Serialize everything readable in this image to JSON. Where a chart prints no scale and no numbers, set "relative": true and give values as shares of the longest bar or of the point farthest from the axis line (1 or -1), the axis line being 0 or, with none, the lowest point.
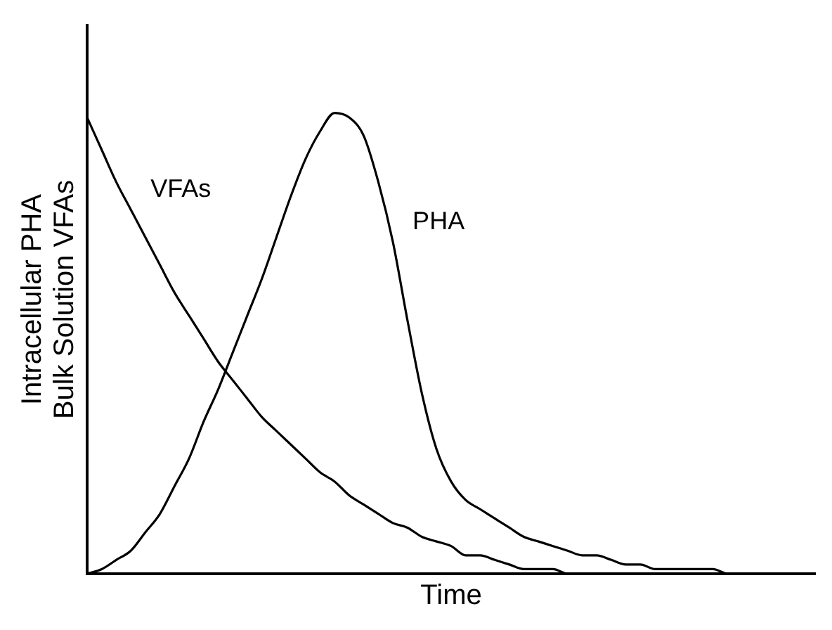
{
  "chart_data": {
    "type": "line",
    "relative": true,
    "xlabel": "Time",
    "ylabel": "Intracellular PHA\nBulk Solution VFAs",
    "tick_labels": false,
    "grid": false,
    "legend": false,
    "marker": "none",
    "line_style": "solid",
    "categories": [
      null,
      null,
      null,
      null,
      null,
      null,
      null,
      null,
      null,
      null,
      null,
      null,
      null,
      null,
      null,
      null,
      null,
      null,
      null,
      null,
      null,
      null,
      null,
      null,
      null,
      null,
      null,
      null,
      null,
      null,
      null,
      null,
      null,
      null,
      null,
      null,
      null,
      null,
      null,
      null,
      null,
      null,
      null,
      null,
      null,
      null,
      null,
      null,
      null,
      null,
      null
    ],
    "series": [
      {
        "name": "VFAs",
        "color": "#000000",
        "values": [
          0.99,
          0.92,
          0.85,
          0.79,
          0.73,
          0.67,
          0.61,
          0.56,
          0.51,
          0.46,
          0.42,
          0.38,
          0.34,
          0.31,
          0.28,
          0.25,
          0.22,
          0.2,
          0.17,
          0.15,
          0.13,
          0.11,
          0.1,
          0.08,
          0.07,
          0.06,
          0.04,
          0.04,
          0.03,
          0.02,
          0.01,
          0.01,
          0.01,
          0,
          0,
          0,
          0,
          0,
          0,
          0,
          0,
          0,
          0,
          0,
          0,
          0,
          0,
          0,
          0,
          0,
          0
        ]
      },
      {
        "name": "PHA",
        "color": "#000000",
        "values": [
          0,
          0.01,
          0.03,
          0.05,
          0.09,
          0.13,
          0.19,
          0.25,
          0.33,
          0.4,
          0.48,
          0.56,
          0.64,
          0.73,
          0.82,
          0.9,
          0.96,
          1,
          0.99,
          0.95,
          0.85,
          0.72,
          0.55,
          0.39,
          0.27,
          0.2,
          0.16,
          0.14,
          0.12,
          0.1,
          0.08,
          0.07,
          0.06,
          0.05,
          0.04,
          0.04,
          0.03,
          0.02,
          0.02,
          0.01,
          0.01,
          0.01,
          0.01,
          0.01,
          0,
          0,
          0,
          0,
          0,
          0,
          0
        ]
      }
    ]
  }
}
